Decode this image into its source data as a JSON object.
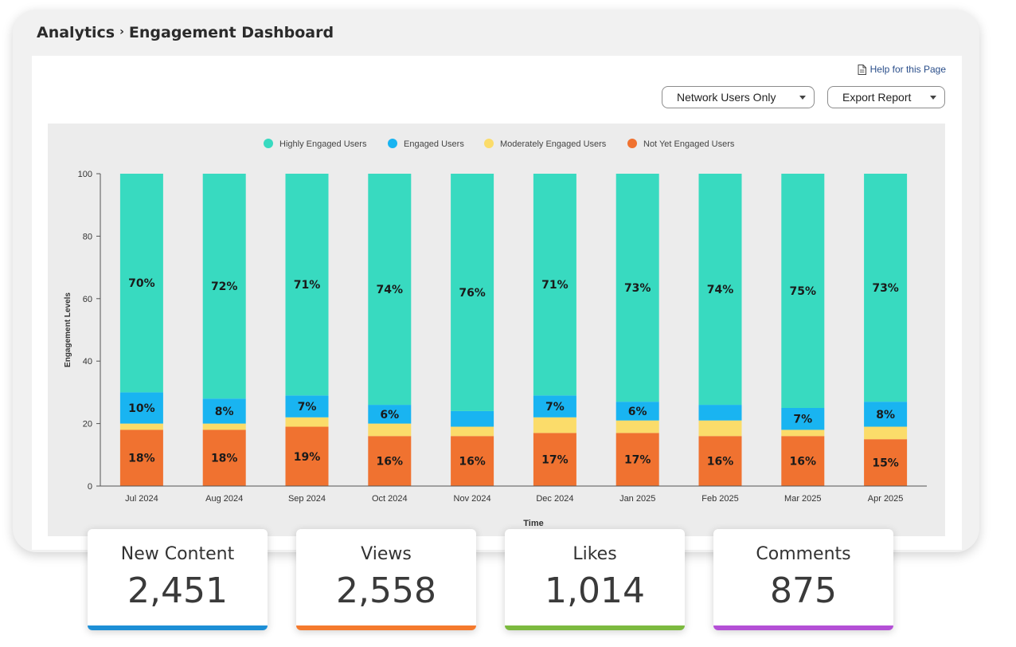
{
  "breadcrumb": {
    "section": "Analytics",
    "separator": "›",
    "page": "Engagement Dashboard"
  },
  "help": {
    "label": "Help for this Page"
  },
  "filters": {
    "network_label": "Network Users Only",
    "export_label": "Export Report"
  },
  "chart_data": {
    "type": "bar",
    "stacked": true,
    "xlabel": "Time",
    "ylabel": "Engagement Levels",
    "ylim": [
      0,
      100
    ],
    "yticks": [
      0,
      20,
      40,
      60,
      80,
      100
    ],
    "legend_position": "top-center",
    "grid": false,
    "categories": [
      "Jul 2024",
      "Aug 2024",
      "Sep 2024",
      "Oct 2024",
      "Nov 2024",
      "Dec 2024",
      "Jan 2025",
      "Feb 2025",
      "Mar 2025",
      "Apr 2025"
    ],
    "series": [
      {
        "name": "Not Yet Engaged Users",
        "color": "#f07230",
        "values": [
          18,
          18,
          19,
          16,
          16,
          17,
          17,
          16,
          16,
          15
        ],
        "labels": [
          "18%",
          "18%",
          "19%",
          "16%",
          "16%",
          "17%",
          "17%",
          "16%",
          "16%",
          "15%"
        ]
      },
      {
        "name": "Moderately Engaged Users",
        "color": "#fbdc6a",
        "values": [
          2,
          2,
          3,
          4,
          3,
          5,
          4,
          5,
          2,
          4
        ],
        "labels": [
          "",
          "",
          "",
          "",
          "",
          "",
          "",
          "",
          "",
          ""
        ]
      },
      {
        "name": "Engaged Users",
        "color": "#19b4f1",
        "values": [
          10,
          8,
          7,
          6,
          5,
          7,
          6,
          5,
          7,
          8
        ],
        "labels": [
          "10%",
          "8%",
          "7%",
          "6%",
          "",
          "7%",
          "6%",
          "",
          "7%",
          "8%"
        ]
      },
      {
        "name": "Highly Engaged Users",
        "color": "#38dac0",
        "values": [
          70,
          72,
          71,
          74,
          76,
          71,
          73,
          74,
          75,
          73
        ],
        "labels": [
          "70%",
          "72%",
          "71%",
          "74%",
          "76%",
          "71%",
          "73%",
          "74%",
          "75%",
          "73%"
        ]
      }
    ],
    "legend_order": [
      "Highly Engaged Users",
      "Engaged Users",
      "Moderately Engaged Users",
      "Not Yet Engaged Users"
    ]
  },
  "stats": [
    {
      "label": "New Content",
      "value": "2,451",
      "color": "#1d8fd6"
    },
    {
      "label": "Views",
      "value": "2,558",
      "color": "#f57a2d"
    },
    {
      "label": "Likes",
      "value": "1,014",
      "color": "#7cba3f"
    },
    {
      "label": "Comments",
      "value": "875",
      "color": "#b450d6"
    }
  ]
}
